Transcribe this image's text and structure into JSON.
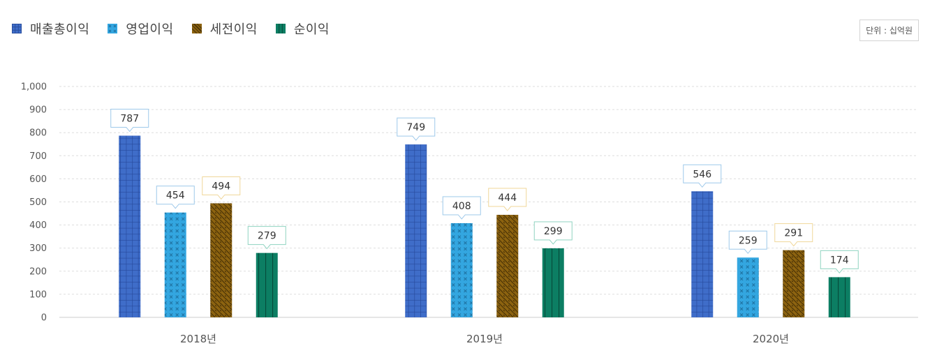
{
  "unit_label": "단위 : 십억원",
  "colors": {
    "gross_profit": "#3f6dc9",
    "operating_profit": "#33a6e0",
    "pretax_profit": "#8d6310",
    "net_profit": "#0c7e63",
    "label_border_blue": "#9ec9ea",
    "label_border_gold": "#f0d79a",
    "label_border_green": "#8fd3c0",
    "grid": "#dddddd",
    "axis_text": "#555555"
  },
  "legend": [
    {
      "name": "매출총이익",
      "pattern": "grid",
      "icon": "grid-square-icon"
    },
    {
      "name": "영업이익",
      "pattern": "cross",
      "icon": "cross-square-icon"
    },
    {
      "name": "세전이익",
      "pattern": "diagonal",
      "icon": "diagonal-square-icon"
    },
    {
      "name": "순이익",
      "pattern": "vertical",
      "icon": "vertical-square-icon"
    }
  ],
  "chart_data": {
    "type": "bar",
    "categories": [
      "2018년",
      "2019년",
      "2020년"
    ],
    "series": [
      {
        "name": "매출총이익",
        "values": [
          787,
          749,
          546
        ]
      },
      {
        "name": "영업이익",
        "values": [
          454,
          408,
          259
        ]
      },
      {
        "name": "세전이익",
        "values": [
          494,
          444,
          291
        ]
      },
      {
        "name": "순이익",
        "values": [
          279,
          299,
          174
        ]
      }
    ],
    "ylim": [
      0,
      1000
    ],
    "yticks": [
      "0",
      "100",
      "200",
      "300",
      "400",
      "500",
      "600",
      "700",
      "800",
      "900",
      "1,000"
    ],
    "ytick_values": [
      0,
      100,
      200,
      300,
      400,
      500,
      600,
      700,
      800,
      900,
      1000
    ],
    "grid": true,
    "legend_position": "top-left",
    "data_labels": true
  }
}
